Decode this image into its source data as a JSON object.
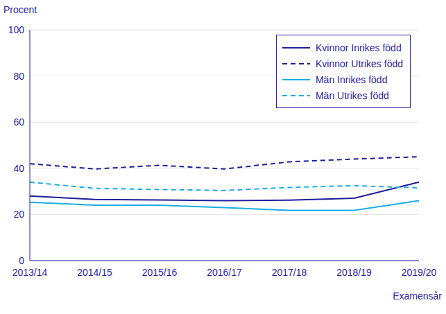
{
  "chart_data": {
    "type": "line",
    "y_label": "Procent",
    "x_label": "Examensår",
    "categories": [
      "2013/14",
      "2014/15",
      "2015/16",
      "2016/17",
      "2017/18",
      "2018/19",
      "2019/20"
    ],
    "series": [
      {
        "name": "Kvinnor Inrikes född",
        "color": "#1e1e9c",
        "line_style": "solid",
        "values": [
          28,
          26.5,
          26.3,
          26,
          26.2,
          27,
          34
        ]
      },
      {
        "name": "Kvinnor Utrikes född",
        "color": "#1e1e9c",
        "line_style": "dashed",
        "values": [
          42,
          39.7,
          41.3,
          39.7,
          42.8,
          44,
          45
        ]
      },
      {
        "name": "Män Inrikes född",
        "color": "#1aaee6",
        "line_style": "solid",
        "values": [
          25.3,
          24,
          24,
          23,
          21.8,
          21.8,
          26
        ]
      },
      {
        "name": "Män Utrikes född",
        "color": "#1aaee6",
        "line_style": "dashed",
        "values": [
          34,
          31.3,
          30.8,
          30.4,
          31.7,
          32.5,
          31.5
        ]
      }
    ],
    "ylim": [
      0,
      100
    ],
    "yticks": [
      0,
      20,
      40,
      60,
      80,
      100
    ],
    "grid": true,
    "legend": "upper right"
  }
}
